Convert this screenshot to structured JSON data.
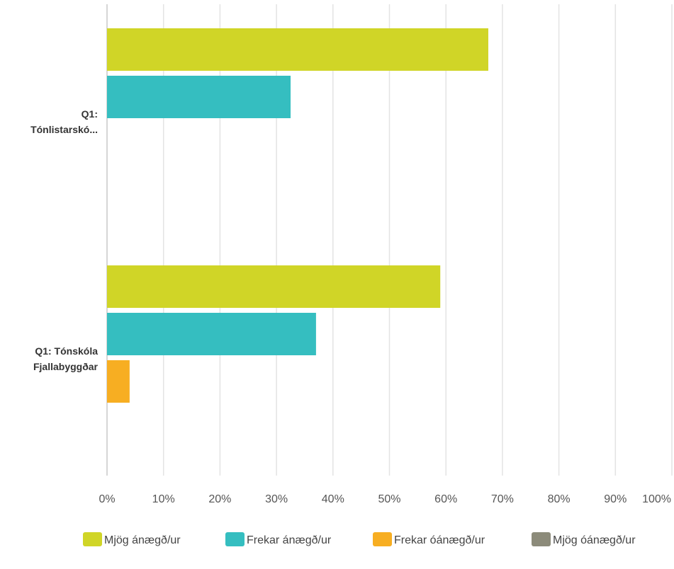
{
  "chart_data": {
    "type": "bar",
    "orientation": "horizontal",
    "categories": [
      [
        "Q1:",
        "Tónlistarskó..."
      ],
      [
        "Q1: Tónskóla",
        "Fjallabyggðar"
      ]
    ],
    "series": [
      {
        "name": "Mjög ánægð/ur",
        "color": "#d0d527",
        "values": [
          67.5,
          59
        ]
      },
      {
        "name": "Frekar ánægð/ur",
        "color": "#35bec0",
        "values": [
          32.5,
          37
        ]
      },
      {
        "name": "Frekar óánægð/ur",
        "color": "#f7ae22",
        "values": [
          0,
          4
        ]
      },
      {
        "name": "Mjög óánægð/ur",
        "color": "#8c8b7a",
        "values": [
          0,
          0
        ]
      }
    ],
    "x_ticks": [
      "0%",
      "10%",
      "20%",
      "30%",
      "40%",
      "50%",
      "60%",
      "70%",
      "80%",
      "90%",
      "100%"
    ],
    "xlim": [
      0,
      100
    ],
    "grid": true,
    "legend": "bottom"
  }
}
